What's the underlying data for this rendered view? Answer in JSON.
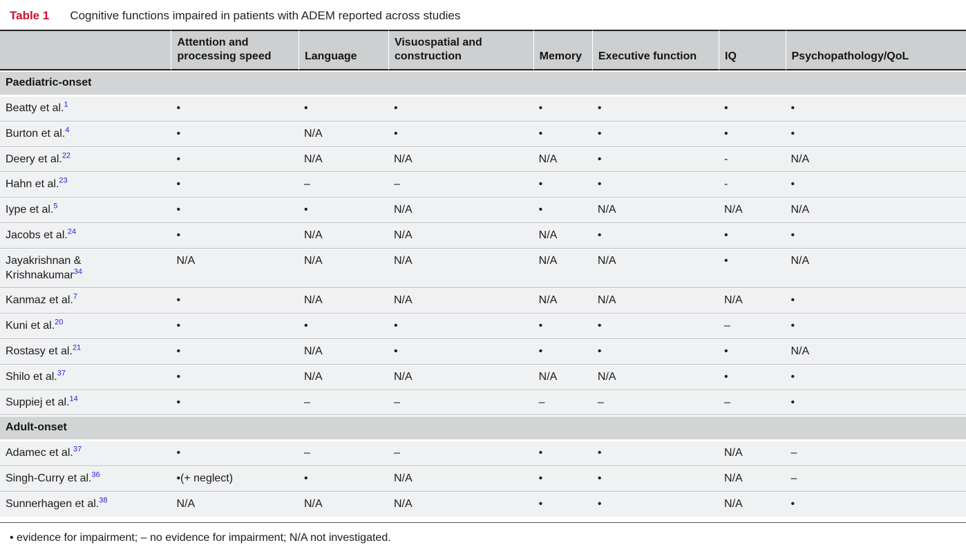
{
  "table": {
    "label": "Table 1",
    "title": "Cognitive functions impaired in patients with ADEM reported across studies",
    "columns": [
      "",
      "Attention and processing speed",
      "Language",
      "Visuospatial and construction",
      "Memory",
      "Executive function",
      "IQ",
      "Psychopathology/QoL"
    ],
    "sections": [
      {
        "heading": "Paediatric-onset",
        "rows": [
          {
            "study": "Beatty et al.",
            "ref": "1",
            "values": [
              "•",
              "•",
              "•",
              "•",
              "•",
              "•",
              "•"
            ]
          },
          {
            "study": "Burton et al.",
            "ref": "4",
            "values": [
              "•",
              "N/A",
              "•",
              "•",
              "•",
              "•",
              "•"
            ]
          },
          {
            "study": "Deery et al.",
            "ref": "22",
            "values": [
              "•",
              "N/A",
              "N/A",
              "N/A",
              "•",
              "-",
              "N/A"
            ]
          },
          {
            "study": "Hahn et al.",
            "ref": "23",
            "values": [
              "•",
              "–",
              "–",
              "•",
              "•",
              "-",
              "•"
            ]
          },
          {
            "study": "Iype et al.",
            "ref": "5",
            "values": [
              "•",
              "•",
              "N/A",
              "•",
              "N/A",
              "N/A",
              "N/A"
            ]
          },
          {
            "study": "Jacobs et al.",
            "ref": "24",
            "values": [
              "•",
              "N/A",
              "N/A",
              "N/A",
              "•",
              "•",
              "•"
            ]
          },
          {
            "study": "Jayakrishnan &",
            "study2": "Krishnakumar",
            "ref": "34",
            "values": [
              "N/A",
              "N/A",
              "N/A",
              "N/A",
              "N/A",
              "•",
              "N/A"
            ]
          },
          {
            "study": "Kanmaz et al.",
            "ref": "7",
            "values": [
              "•",
              "N/A",
              "N/A",
              "N/A",
              "N/A",
              "N/A",
              "•"
            ]
          },
          {
            "study": "Kuni et al.",
            "ref": "20",
            "values": [
              "•",
              "•",
              "•",
              "•",
              "•",
              "–",
              "•"
            ]
          },
          {
            "study": "Rostasy et al.",
            "ref": "21",
            "values": [
              "•",
              "N/A",
              "•",
              "•",
              "•",
              "•",
              "N/A"
            ]
          },
          {
            "study": "Shilo et al.",
            "ref": "37",
            "values": [
              "•",
              "N/A",
              "N/A",
              "N/A",
              "N/A",
              "•",
              "•"
            ]
          },
          {
            "study": "Suppiej et al.",
            "ref": "14",
            "values": [
              "•",
              "–",
              "–",
              "–",
              "–",
              "–",
              "•"
            ]
          }
        ]
      },
      {
        "heading": "Adult-onset",
        "rows": [
          {
            "study": "Adamec et al.",
            "ref": "37",
            "values": [
              "•",
              "–",
              "–",
              "•",
              "•",
              "N/A",
              "–"
            ]
          },
          {
            "study": "Singh-Curry et al.",
            "ref": "36",
            "values": [
              "•(+ neglect)",
              "•",
              "N/A",
              "•",
              "•",
              "N/A",
              "–"
            ]
          },
          {
            "study": "Sunnerhagen et al.",
            "ref": "38",
            "values": [
              "N/A",
              "N/A",
              "N/A",
              "•",
              "•",
              "N/A",
              "•"
            ]
          }
        ]
      }
    ],
    "footnote": "• evidence for impairment; – no evidence for impairment; N/A not investigated.",
    "legend_symbols": {
      "impaired": "•",
      "no_evidence": "–",
      "not_investigated": "N/A"
    }
  },
  "colors": {
    "accent_red": "#c8102e",
    "reference_blue": "#2222dd",
    "header_gray": "#cdcfd1",
    "section_gray": "#d2d4d6",
    "row_background": "#f0f1f3",
    "rule_black": "#1c1c1c"
  }
}
